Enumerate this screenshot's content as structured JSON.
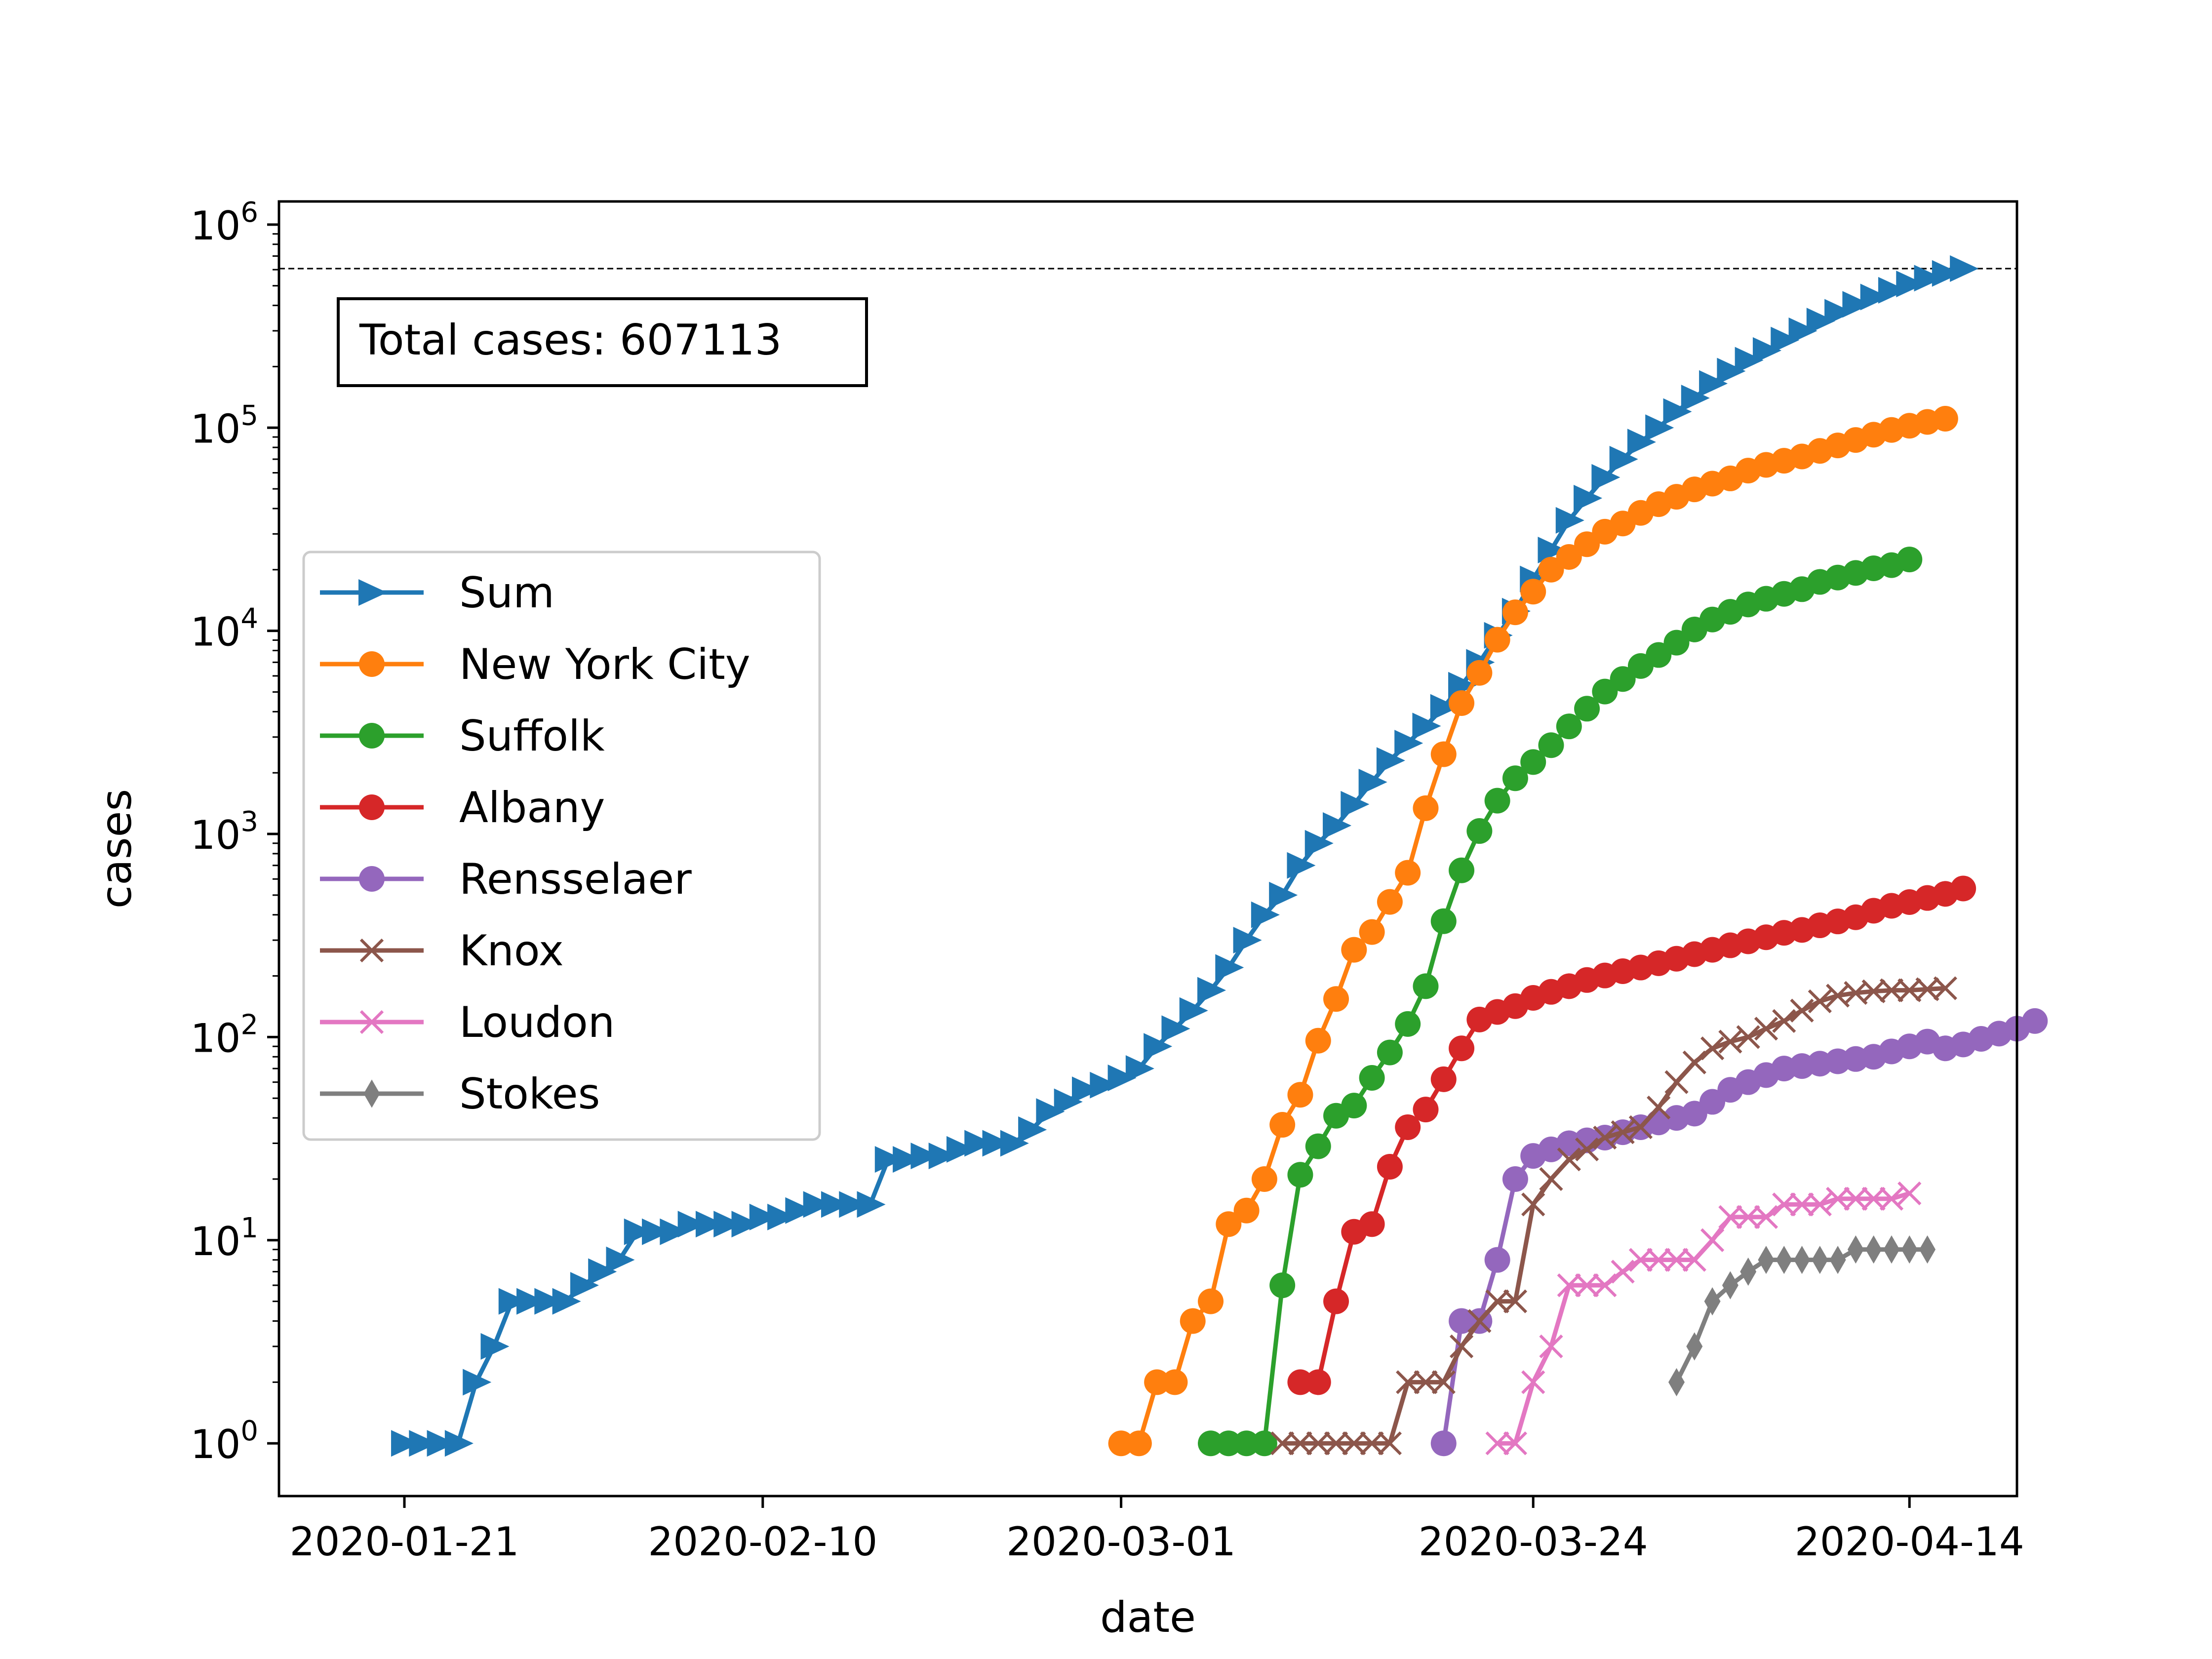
{
  "chart_data": {
    "type": "line",
    "xlabel": "date",
    "ylabel": "cases",
    "yscale": "log",
    "ylim": [
      0.55,
      1300000
    ],
    "xlim": [
      "2020-01-14",
      "2020-04-20"
    ],
    "x_ticks": [
      "2020-01-21",
      "2020-02-10",
      "2020-03-01",
      "2020-03-24",
      "2020-04-14"
    ],
    "y_ticks": [
      {
        "value": 1,
        "base": "10",
        "exp": "0"
      },
      {
        "value": 10,
        "base": "10",
        "exp": "1"
      },
      {
        "value": 100,
        "base": "10",
        "exp": "2"
      },
      {
        "value": 1000,
        "base": "10",
        "exp": "3"
      },
      {
        "value": 10000,
        "base": "10",
        "exp": "4"
      },
      {
        "value": 100000,
        "base": "10",
        "exp": "5"
      },
      {
        "value": 1000000,
        "base": "10",
        "exp": "6"
      }
    ],
    "reference_line": {
      "value": 607113,
      "style": "dashed",
      "color": "#000000"
    },
    "annotation": "Total cases: 607113",
    "legend_position": "center-left",
    "series": [
      {
        "name": "Sum",
        "color": "#1f77b4",
        "marker": "triangle-right",
        "start": "2020-01-21",
        "values": [
          1,
          1,
          1,
          1,
          2,
          3,
          5,
          5,
          5,
          5,
          6,
          7,
          8,
          11,
          11,
          11,
          12,
          12,
          12,
          12,
          13,
          13,
          14,
          15,
          15,
          15,
          15,
          25,
          25,
          26,
          26,
          28,
          30,
          30,
          30,
          35,
          43,
          48,
          55,
          58,
          63,
          70,
          90,
          110,
          135,
          170,
          220,
          300,
          400,
          500,
          700,
          900,
          1100,
          1400,
          1800,
          2300,
          2800,
          3400,
          4200,
          5400,
          7000,
          9500,
          12500,
          18000,
          25000,
          35000,
          45000,
          57000,
          70000,
          85000,
          100000,
          120000,
          140000,
          165000,
          190000,
          215000,
          240000,
          270000,
          300000,
          335000,
          370000,
          405000,
          440000,
          475000,
          510000,
          545000,
          575000,
          607113
        ]
      },
      {
        "name": "New York City",
        "color": "#ff7f0e",
        "marker": "circle",
        "start": "2020-03-01",
        "values": [
          1,
          1,
          2,
          2,
          4,
          5,
          12,
          14,
          20,
          37,
          52,
          96,
          154,
          269,
          329,
          463,
          644,
          1339,
          2469,
          4408,
          6211,
          9045,
          12339,
          15597,
          20011,
          23112,
          26697,
          30765,
          33768,
          38087,
          42024,
          45707,
          49707,
          53061,
          56289,
          61502,
          65618,
          68776,
          72181,
          76876,
          81803,
          87028,
          92384,
          97549,
          102261,
          106813,
          110765
        ]
      },
      {
        "name": "Suffolk",
        "color": "#2ca02c",
        "marker": "circle",
        "start": "2020-03-06",
        "values": [
          1,
          1,
          1,
          1,
          6,
          21,
          29,
          41,
          46,
          63,
          84,
          116,
          178,
          372,
          662,
          1034,
          1458,
          1880,
          2260,
          2735,
          3385,
          4138,
          5023,
          5791,
          6713,
          7605,
          8746,
          10154,
          11370,
          12405,
          13487,
          14385,
          15212,
          16033,
          17413,
          18291,
          19274,
          20321,
          21050,
          22462
        ]
      },
      {
        "name": "Albany",
        "color": "#d62728",
        "marker": "circle",
        "start": "2020-03-11",
        "values": [
          2,
          2,
          5,
          11,
          12,
          23,
          36,
          44,
          62,
          88,
          122,
          133,
          142,
          156,
          167,
          178,
          191,
          201,
          211,
          220,
          231,
          243,
          256,
          269,
          283,
          296,
          310,
          326,
          337,
          355,
          371,
          389,
          419,
          443,
          462,
          484,
          507,
          539
        ]
      },
      {
        "name": "Rensselaer",
        "color": "#9467bd",
        "marker": "circle",
        "start": "2020-03-19",
        "values": [
          1,
          4,
          4,
          8,
          20,
          26,
          28,
          30,
          31,
          32,
          34,
          36,
          38,
          40,
          42,
          48,
          55,
          60,
          65,
          70,
          72,
          74,
          76,
          78,
          80,
          85,
          90,
          95,
          88,
          92,
          98,
          104,
          110,
          120
        ]
      },
      {
        "name": "Knox",
        "color": "#8c564b",
        "marker": "x",
        "start": "2020-03-10",
        "values": [
          1,
          1,
          1,
          1,
          1,
          1,
          1,
          2,
          2,
          2,
          3,
          4,
          5,
          5,
          15,
          20,
          25,
          28,
          32,
          34,
          36,
          45,
          60,
          75,
          88,
          95,
          100,
          110,
          120,
          135,
          150,
          160,
          165,
          168,
          170,
          170,
          172,
          174
        ]
      },
      {
        "name": "Loudon",
        "color": "#e377c2",
        "marker": "x",
        "start": "2020-03-22",
        "values": [
          1,
          1,
          2,
          3,
          6,
          6,
          6,
          7,
          8,
          8,
          8,
          8,
          10,
          13,
          13,
          13,
          15,
          15,
          15,
          16,
          16,
          16,
          16,
          17
        ]
      },
      {
        "name": "Stokes",
        "color": "#7f7f7f",
        "marker": "diamond",
        "start": "2020-04-01",
        "values": [
          2,
          3,
          5,
          6,
          7,
          8,
          8,
          8,
          8,
          8,
          9,
          9,
          9,
          9,
          9
        ]
      }
    ]
  }
}
